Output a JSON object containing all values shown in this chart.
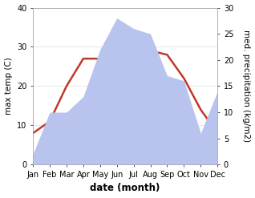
{
  "months": [
    "Jan",
    "Feb",
    "Mar",
    "Apr",
    "May",
    "Jun",
    "Jul",
    "Aug",
    "Sep",
    "Oct",
    "Nov",
    "Dec"
  ],
  "temp": [
    8,
    11,
    20,
    27,
    27,
    27,
    34,
    29,
    28,
    22,
    14,
    8
  ],
  "precip": [
    2,
    10,
    10,
    13,
    22,
    28,
    26,
    25,
    17,
    16,
    6,
    14
  ],
  "temp_color": "#c0392b",
  "precip_color": "#b8c4ee",
  "ylim_temp": [
    0,
    40
  ],
  "ylim_precip": [
    0,
    30
  ],
  "yticks_temp": [
    0,
    10,
    20,
    30,
    40
  ],
  "yticks_precip": [
    0,
    5,
    10,
    15,
    20,
    25,
    30
  ],
  "ylabel_left": "max temp (C)",
  "ylabel_right": "med. precipitation (kg/m2)",
  "xlabel": "date (month)",
  "bg_color": "#ffffff",
  "grid_color": "#dddddd",
  "temp_linewidth": 1.8,
  "xlabel_fontsize": 8.5,
  "ylabel_fontsize": 7.5,
  "tick_fontsize": 7
}
